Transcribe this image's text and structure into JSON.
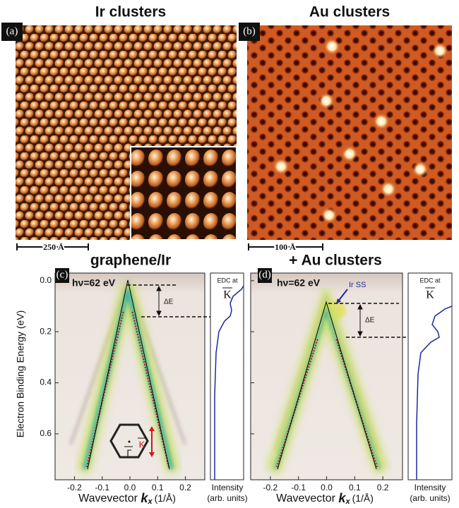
{
  "panels": [
    {
      "label": "(a)",
      "title": "Ir clusters",
      "scale_bar": "250 Å"
    },
    {
      "label": "(b)",
      "title": "Au clusters",
      "scale_bar": "100 Å"
    },
    {
      "label": "(c)",
      "title": "graphene/Ir",
      "photon_energy": "hν=62 eV",
      "gap_label": "ΔE",
      "edc_label": "EDC at",
      "k_point": "K",
      "gamma_point": "Γ",
      "inset_k_point": "K"
    },
    {
      "label": "(d)",
      "title": "+ Au clusters",
      "photon_energy": "hν=62 eV",
      "gap_label": "ΔE",
      "surface_state": "Ir SS",
      "edc_label": "EDC at",
      "k_point": "K"
    }
  ],
  "arpes_axes": {
    "ylabel": "Electron Binding Energy (eV)",
    "xlabel": "Wavevector",
    "xlabel_symbol": "k",
    "xlabel_subscript": "x",
    "xlabel_unit": "(1/Å)",
    "intensity_label": "Intensity",
    "intensity_unit": "(arb. units)",
    "xlim": [
      -0.27,
      0.27
    ],
    "ylim": [
      -0.03,
      0.78
    ],
    "xticks": [
      -0.2,
      -0.1,
      {
        "value": 0,
        "label": "0.0"
      },
      0.1,
      0.2
    ],
    "yticks": [
      {
        "value": 0,
        "label": "0.0"
      },
      0.2,
      0.4,
      0.6
    ]
  }
}
